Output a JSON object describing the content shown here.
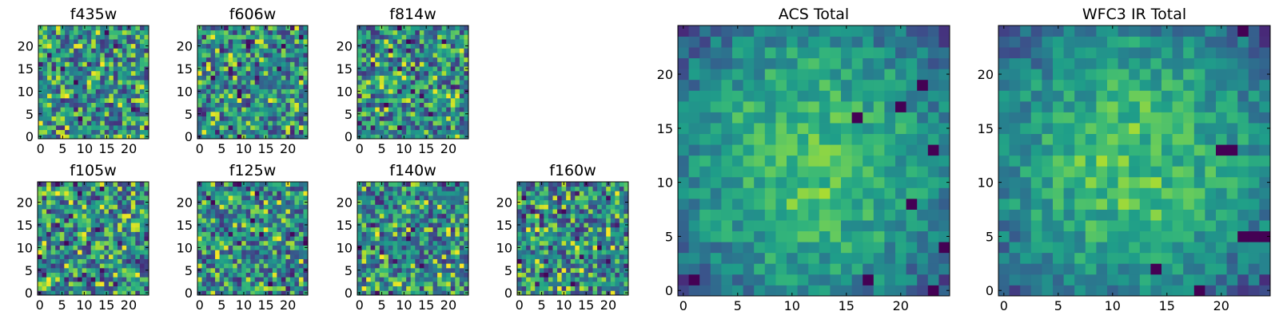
{
  "chart_data": [
    {
      "type": "heatmap",
      "title": "f435w",
      "grid_size": 25,
      "xlim": [
        -0.5,
        24.5
      ],
      "ylim": [
        -0.5,
        24.5
      ],
      "xticks": [
        0,
        5,
        10,
        15,
        20
      ],
      "yticks": [
        0,
        5,
        10,
        15,
        20
      ],
      "colormap": "viridis",
      "grid": false
    },
    {
      "type": "heatmap",
      "title": "f606w",
      "grid_size": 25,
      "xlim": [
        -0.5,
        24.5
      ],
      "ylim": [
        -0.5,
        24.5
      ],
      "xticks": [
        0,
        5,
        10,
        15,
        20
      ],
      "yticks": [
        0,
        5,
        10,
        15,
        20
      ],
      "colormap": "viridis",
      "grid": false
    },
    {
      "type": "heatmap",
      "title": "f814w",
      "grid_size": 25,
      "xlim": [
        -0.5,
        24.5
      ],
      "ylim": [
        -0.5,
        24.5
      ],
      "xticks": [
        0,
        5,
        10,
        15,
        20
      ],
      "yticks": [
        0,
        5,
        10,
        15,
        20
      ],
      "colormap": "viridis",
      "grid": false
    },
    {
      "type": "heatmap",
      "title": "f105w",
      "grid_size": 25,
      "xlim": [
        -0.5,
        24.5
      ],
      "ylim": [
        -0.5,
        24.5
      ],
      "xticks": [
        0,
        5,
        10,
        15,
        20
      ],
      "yticks": [
        0,
        5,
        10,
        15,
        20
      ],
      "colormap": "viridis",
      "grid": false
    },
    {
      "type": "heatmap",
      "title": "f125w",
      "grid_size": 25,
      "xlim": [
        -0.5,
        24.5
      ],
      "ylim": [
        -0.5,
        24.5
      ],
      "xticks": [
        0,
        5,
        10,
        15,
        20
      ],
      "yticks": [
        0,
        5,
        10,
        15,
        20
      ],
      "colormap": "viridis",
      "grid": false
    },
    {
      "type": "heatmap",
      "title": "f140w",
      "grid_size": 25,
      "xlim": [
        -0.5,
        24.5
      ],
      "ylim": [
        -0.5,
        24.5
      ],
      "xticks": [
        0,
        5,
        10,
        15,
        20
      ],
      "yticks": [
        0,
        5,
        10,
        15,
        20
      ],
      "colormap": "viridis",
      "grid": false
    },
    {
      "type": "heatmap",
      "title": "f160w",
      "grid_size": 25,
      "xlim": [
        -0.5,
        24.5
      ],
      "ylim": [
        -0.5,
        24.5
      ],
      "xticks": [
        0,
        5,
        10,
        15,
        20
      ],
      "yticks": [
        0,
        5,
        10,
        15,
        20
      ],
      "colormap": "viridis",
      "grid": false
    },
    {
      "type": "heatmap",
      "title": "ACS Total",
      "grid_size": 25,
      "xlim": [
        -0.5,
        24.5
      ],
      "ylim": [
        -0.5,
        24.5
      ],
      "xticks": [
        0,
        5,
        10,
        15,
        20
      ],
      "yticks": [
        0,
        5,
        10,
        15,
        20
      ],
      "colormap": "viridis",
      "grid": false,
      "dark_pixels": [
        [
          1,
          1
        ],
        [
          17,
          1
        ],
        [
          23,
          0
        ],
        [
          24,
          4
        ],
        [
          21,
          8
        ],
        [
          23,
          13
        ],
        [
          16,
          16
        ],
        [
          20,
          17
        ],
        [
          22,
          19
        ]
      ]
    },
    {
      "type": "heatmap",
      "title": "WFC3 IR Total",
      "grid_size": 25,
      "xlim": [
        -0.5,
        24.5
      ],
      "ylim": [
        -0.5,
        24.5
      ],
      "xticks": [
        0,
        5,
        10,
        15,
        20
      ],
      "yticks": [
        0,
        5,
        10,
        15,
        20
      ],
      "colormap": "viridis",
      "grid": false,
      "dark_pixels": [
        [
          22,
          5
        ],
        [
          23,
          5
        ],
        [
          24,
          5
        ],
        [
          20,
          13
        ],
        [
          21,
          13
        ],
        [
          14,
          2
        ],
        [
          18,
          0
        ],
        [
          22,
          24
        ]
      ]
    }
  ],
  "colors": {
    "viridis_low": "#440154",
    "viridis_mid": "#21918c",
    "viridis_high": "#fde725",
    "axes": "#000000",
    "background": "#ffffff"
  }
}
